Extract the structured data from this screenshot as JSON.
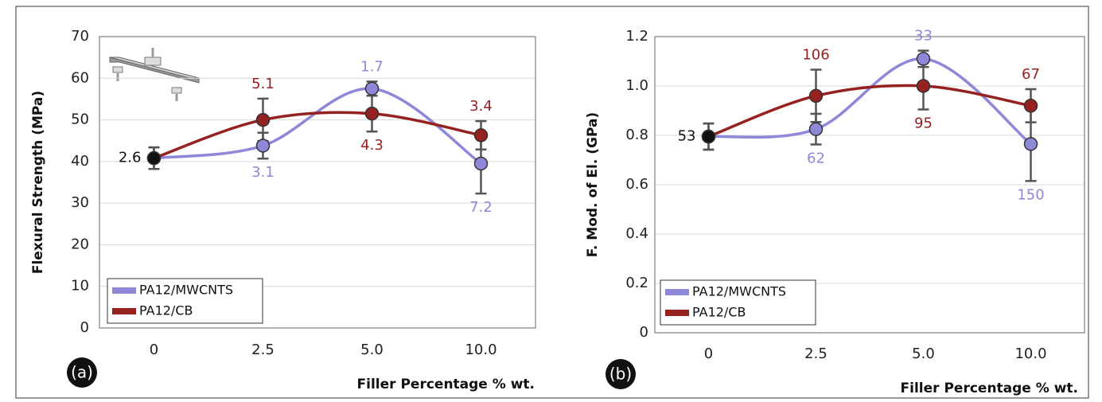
{
  "chart_data": [
    {
      "type": "line",
      "panel_label": "(a)",
      "y_label": "Flexural Strength (MPa)",
      "x_label": "Filler Percentage % wt.",
      "categories": [
        "0",
        "2.5",
        "5.0",
        "10.0"
      ],
      "series": [
        {
          "name": "PA12/MWCNTS",
          "color": "#8f87d8",
          "values": [
            40.8,
            43.8,
            57.5,
            39.5
          ],
          "errors": [
            2.6,
            3.1,
            1.7,
            7.2
          ]
        },
        {
          "name": "PA12/CB",
          "color": "#962121",
          "values": [
            40.8,
            50,
            51.5,
            46.3
          ],
          "errors": [
            2.6,
            5.1,
            4.3,
            3.4
          ]
        }
      ],
      "first_point_color": "#111111",
      "ylim": [
        0,
        70
      ],
      "yticks": [
        0,
        10,
        20,
        30,
        40,
        50,
        60,
        70
      ],
      "grid": true,
      "legend": "lower left"
    },
    {
      "type": "line",
      "panel_label": "(b)",
      "y_label": "F. Mod. of El. (GPa)",
      "x_label": "Filler Percentage % wt.",
      "categories": [
        "0",
        "2.5",
        "5.0",
        "10.0"
      ],
      "series": [
        {
          "name": "PA12/MWCNTS",
          "color": "#8f87d8",
          "values": [
            0.795,
            0.825,
            1.11,
            0.765
          ],
          "errors": [
            0.053,
            0.062,
            0.033,
            0.15
          ],
          "error_labels": [
            "53",
            "62",
            "33",
            "150"
          ]
        },
        {
          "name": "PA12/CB",
          "color": "#962121",
          "values": [
            0.795,
            0.96,
            1.0,
            0.92
          ],
          "errors": [
            0.053,
            0.106,
            0.095,
            0.067
          ],
          "error_labels": [
            "53",
            "106",
            "95",
            "67"
          ]
        }
      ],
      "first_point_color": "#111111",
      "ylim": [
        0,
        1.2
      ],
      "yticks": [
        0,
        0.2,
        0.4,
        0.6,
        0.8,
        {
          "value": 1,
          "label": "1.0"
        },
        1.2
      ],
      "grid": true,
      "legend": "lower left"
    }
  ]
}
